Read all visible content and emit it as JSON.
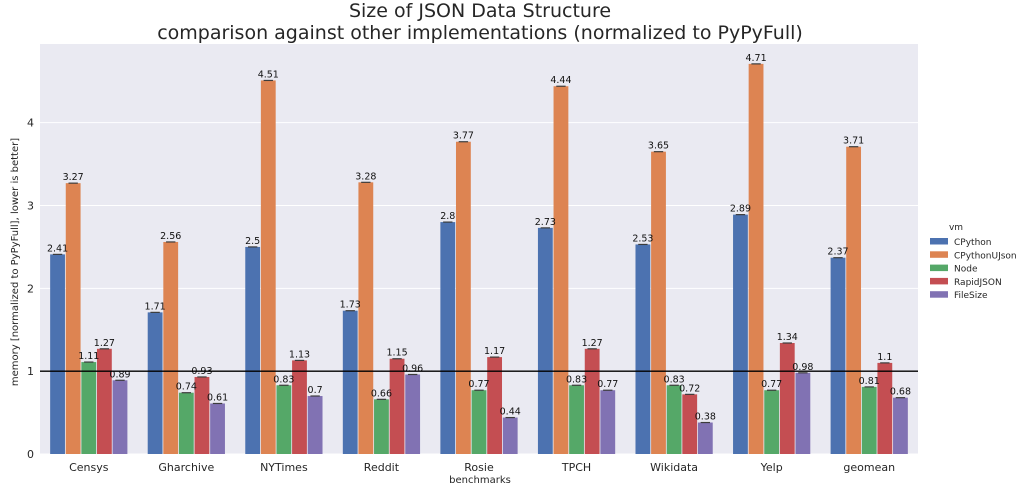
{
  "chart_data": {
    "type": "bar",
    "title": "Size of JSON Data Structure",
    "subtitle": "comparison against other implementations (normalized to PyPyFull)",
    "xlabel": "benchmarks",
    "ylabel": "memory [normalized to PyPyFull], lower is better]",
    "ylim": [
      0,
      4.95
    ],
    "yticks": [
      0,
      1,
      2,
      3,
      4
    ],
    "reference_line": 1,
    "grid": true,
    "legend_title": "vm",
    "legend_position": "right",
    "categories": [
      "Censys",
      "Gharchive",
      "NYTimes",
      "Reddit",
      "Rosie",
      "TPCH",
      "Wikidata",
      "Yelp",
      "geomean"
    ],
    "series": [
      {
        "name": "CPython",
        "color": "#4c72b0",
        "values": [
          2.41,
          1.71,
          2.5,
          1.73,
          2.8,
          2.73,
          2.53,
          2.89,
          2.37
        ],
        "labels": [
          "2.41",
          "1.71",
          "2.5",
          "1.73",
          "2.8",
          "2.73",
          "2.53",
          "2.89",
          "2.37"
        ]
      },
      {
        "name": "CPythonUJson",
        "color": "#dd8452",
        "values": [
          3.27,
          2.56,
          4.51,
          3.28,
          3.77,
          4.44,
          3.65,
          4.71,
          3.71
        ],
        "labels": [
          "3.27",
          "2.56",
          "4.51",
          "3.28",
          "3.77",
          "4.44",
          "3.65",
          "4.71",
          "3.71"
        ]
      },
      {
        "name": "Node",
        "color": "#55a868",
        "values": [
          1.11,
          0.74,
          0.83,
          0.66,
          0.77,
          0.83,
          0.83,
          0.77,
          0.81
        ],
        "labels": [
          "1.11",
          "0.74",
          "0.83",
          "0.66",
          "0.77",
          "0.83",
          "0.83",
          "0.77",
          "0.81"
        ]
      },
      {
        "name": "RapidJSON",
        "color": "#c44e52",
        "values": [
          1.27,
          0.93,
          1.13,
          1.15,
          1.17,
          1.27,
          0.72,
          1.34,
          1.1
        ],
        "labels": [
          "1.27",
          "0.93",
          "1.13",
          "1.15",
          "1.17",
          "1.27",
          "0.72",
          "1.34",
          "1.1"
        ]
      },
      {
        "name": "FileSize",
        "color": "#8172b3",
        "values": [
          0.89,
          0.61,
          0.7,
          0.96,
          0.44,
          0.77,
          0.38,
          0.98,
          0.68
        ],
        "labels": [
          "0.89",
          "0.61",
          "0.7",
          "0.96",
          "0.44",
          "0.77",
          "0.38",
          "0.98",
          "0.68"
        ]
      }
    ]
  }
}
